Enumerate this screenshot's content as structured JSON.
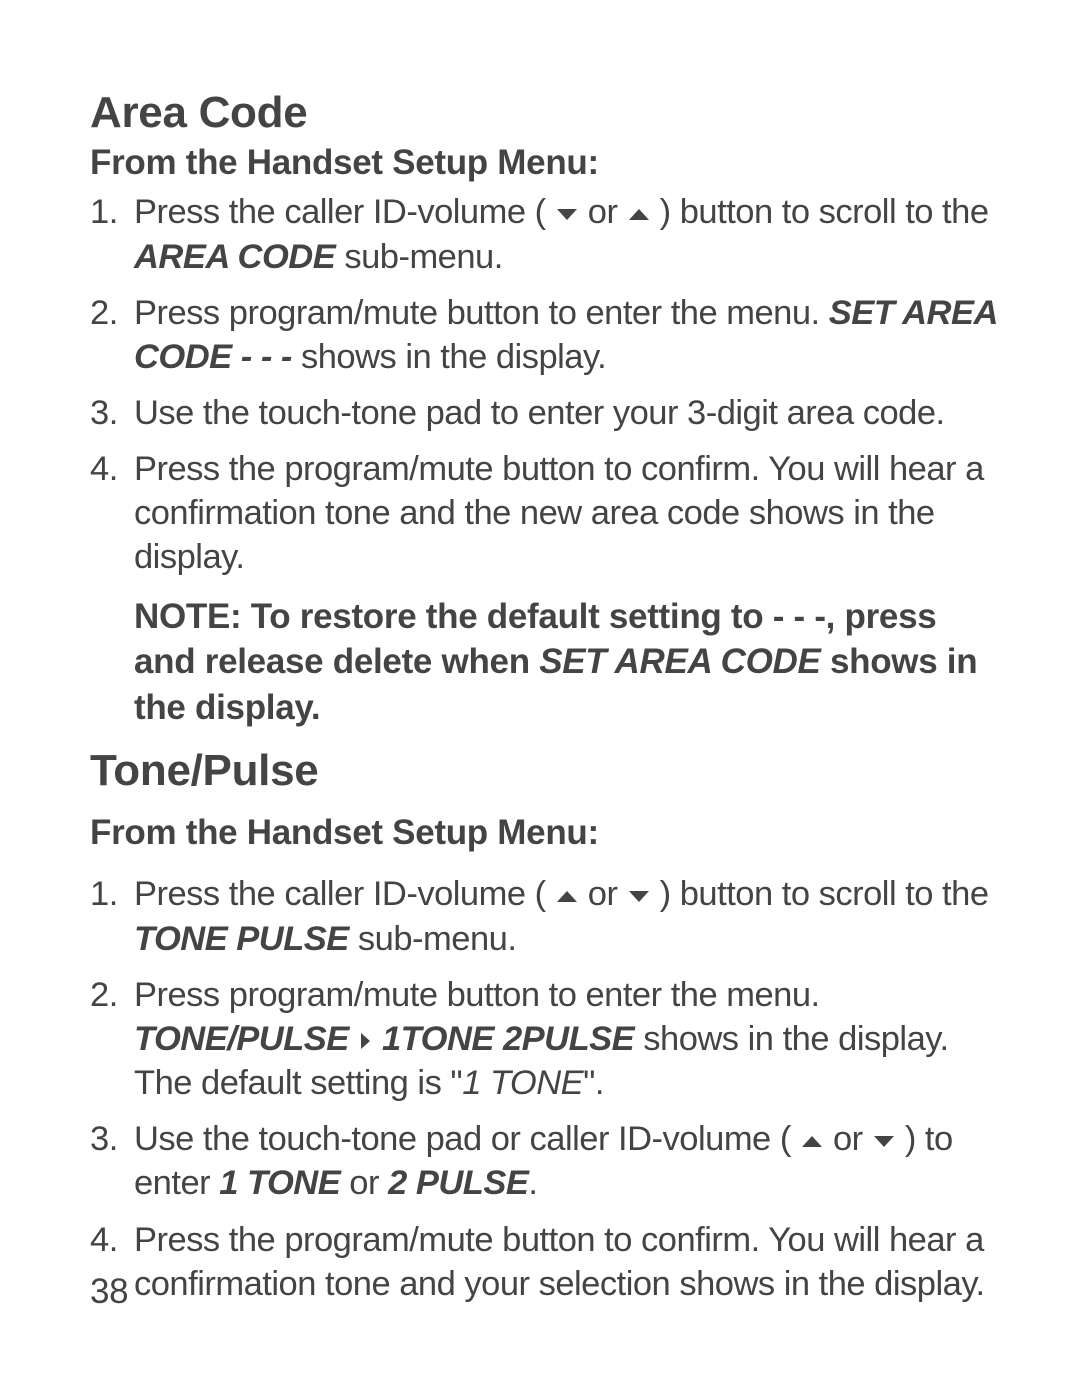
{
  "section1": {
    "heading": "Area Code",
    "subheading": "From the Handset Setup Menu:",
    "steps": {
      "s1a": "Press the caller ID-volume ( ",
      "s1b": " or ",
      "s1c": " ) button to scroll to the ",
      "s1d": "AREA CODE",
      "s1e": " sub-menu.",
      "s2a": "Press program/mute button to enter the menu. ",
      "s2b": "SET AREA CODE - - -",
      "s2c": " shows in the display.",
      "s3": "Use the touch-tone pad to enter your 3-digit area code.",
      "s4": "Press the program/mute button to confirm. You will hear a confirmation tone and the new area code shows in the display."
    },
    "note_a": "NOTE: To restore the default setting to - - -, press and release delete when ",
    "note_b": "SET AREA CODE",
    "note_c": " shows in the display."
  },
  "section2": {
    "heading": "Tone/Pulse",
    "subheading": "From the Handset Setup Menu:",
    "steps": {
      "s1a": "Press the caller ID-volume ( ",
      "s1b": " or ",
      "s1c": " ) button to scroll to the ",
      "s1d": "TONE PULSE",
      "s1e": " sub-menu.",
      "s2a": "Press program/mute button to enter the menu. ",
      "s2b": "TONE/PULSE ",
      "s2c": " 1TONE 2PULSE",
      "s2d": " shows in the display. The default setting is \"",
      "s2e": "1 TONE",
      "s2f": "\".",
      "s3a": "Use the touch-tone pad or caller ID-volume ( ",
      "s3b": " or ",
      "s3c": " ) to enter ",
      "s3d": "1 TONE",
      "s3e": " or ",
      "s3f": "2 PULSE",
      "s3g": ".",
      "s4": "Press the program/mute button to confirm. You will hear a confirmation tone and your selection shows in the display."
    }
  },
  "page_number": "38"
}
